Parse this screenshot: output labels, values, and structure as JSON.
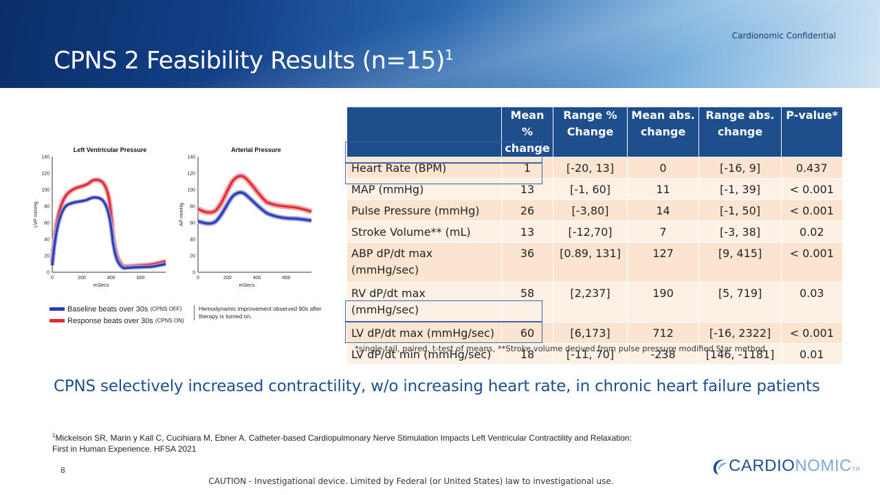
{
  "header": {
    "title": "CPNS 2 Feasibility Results (n=15)",
    "title_sup": "1",
    "confidential": "Cardionomic Confidential"
  },
  "charts": {
    "lvp": {
      "title": "Left Ventricular Pressure",
      "ylabel": "LVP  mmHg",
      "xlabel": "mSecs",
      "yticks": [
        "0",
        "20",
        "40",
        "60",
        "80",
        "100",
        "120",
        "140"
      ],
      "xticks": [
        "0",
        "200",
        "400",
        "600"
      ]
    },
    "ap": {
      "title": "Arterial Pressure",
      "ylabel": "AP  mmHg",
      "xlabel": "mSecs",
      "yticks": [
        "0",
        "20",
        "40",
        "60",
        "80",
        "100",
        "120",
        "140"
      ],
      "xticks": [
        "0",
        "200",
        "400",
        "600"
      ]
    },
    "legend": {
      "baseline": "Baseline beats over 30s",
      "baseline_small": "(CPNS OFF)",
      "response": "Response beats over 30s",
      "response_small": "(CPNS ON)",
      "note": "Hemodynamic improvement observed 90s after therapy is turned on."
    },
    "colors": {
      "baseline": "#2b3bb5",
      "response": "#e02a36"
    }
  },
  "table": {
    "headers": {
      "blank": "",
      "mean_pct_1": "Mean %",
      "mean_pct_2": "change",
      "range_pct_1": "Range %",
      "range_pct_2": "Change",
      "mean_abs_1": "Mean abs.",
      "mean_abs_2": "change",
      "range_abs_1": "Range abs.",
      "range_abs_2": "change",
      "pvalue": "P-value*"
    },
    "rows": [
      {
        "label": "Heart Rate (BPM)",
        "mean_pct": "1",
        "range_pct": "[-20, 13]",
        "mean_abs": "0",
        "range_abs": "[-16, 9]",
        "p": "0.437"
      },
      {
        "label": "MAP (mmHg)",
        "mean_pct": "13",
        "range_pct": "[-1, 60]",
        "mean_abs": "11",
        "range_abs": "[-1, 39]",
        "p": "< 0.001"
      },
      {
        "label": "Pulse Pressure (mmHg)",
        "mean_pct": "26",
        "range_pct": "[-3,80]",
        "mean_abs": "14",
        "range_abs": "[-1, 50]",
        "p": "< 0.001"
      },
      {
        "label": "Stroke Volume** (mL)",
        "mean_pct": "13",
        "range_pct": "[-12,70]",
        "mean_abs": "7",
        "range_abs": "[-3, 38]",
        "p": "0.02"
      },
      {
        "label_1": "ABP dP/dt max",
        "label_2": "(mmHg/sec)",
        "mean_pct": "36",
        "range_pct": "[0.89, 131]",
        "mean_abs": "127",
        "range_abs": "[9, 415]",
        "p": "< 0.001"
      },
      {
        "label_1": "RV dP/dt max",
        "label_2": "(mmHg/sec)",
        "mean_pct": "58",
        "range_pct": "[2,237]",
        "mean_abs": "190",
        "range_abs": "[5, 719]",
        "p": "0.03"
      },
      {
        "label": "LV dP/dt max (mmHg/sec)",
        "mean_pct": "60",
        "range_pct": "[6,173]",
        "mean_abs": "712",
        "range_abs": "[-16, 2322]",
        "p": "< 0.001"
      },
      {
        "label": "LV dP/dt min (mmHg/sec)",
        "mean_pct": "18",
        "range_pct": "[-11, 70]",
        "mean_abs": "-238",
        "range_abs": "[146, -1181]",
        "p": "0.01"
      }
    ],
    "footnote": "*single-tail, paired, t-test of means, **Stroke volume derived from pulse pressure modified Star method"
  },
  "statement": "CPNS selectively increased contractility, w/o increasing heart rate, in chronic heart failure patients",
  "reference": {
    "sup": "1",
    "text": "Mickelson SR, Marin y Kall C, Cucihiara M, Ebner A.  Catheter-based Cardiopulmonary Nerve Stimulation Impacts Left Ventricular Contractility and Relaxation: First in Human Experience. HFSA 2021"
  },
  "footer": {
    "page_number": "8",
    "caution": "CAUTION - Investigational device. Limited by Federal (or United States) law to investigational use.",
    "logo_part1": "CARDIO",
    "logo_part2": "NOMIC",
    "logo_tm": "TM"
  }
}
